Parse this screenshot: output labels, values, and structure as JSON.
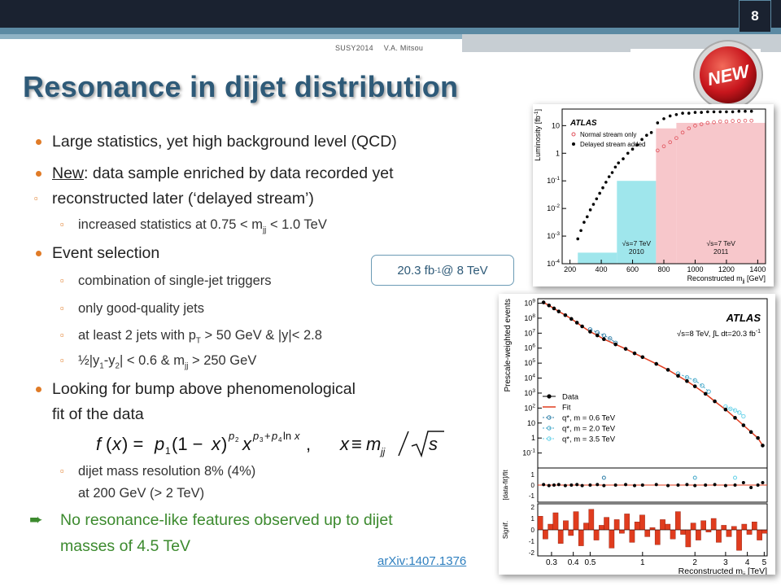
{
  "header": {
    "page_number": "8",
    "conference": "SUSY2014",
    "author": "V.A. Mitsou",
    "badge": "NEW"
  },
  "title": "Resonance in dijet distribution",
  "bullets": {
    "b1": "Large statistics, yet high background level (QCD)",
    "b2_new": "New",
    "b2_rest": ": data sample enriched by data recorded yet",
    "b2_line2": "reconstructed later (‘delayed stream’)",
    "sub1_pre": "increased statistics at 0.75 < m",
    "sub1_sub": "jj",
    "sub1_post": " < 1.0 TeV",
    "b3": "Event selection",
    "sub2": "combination of single-jet triggers",
    "sub3": "only good-quality jets",
    "sub4_pre": "at least 2 jets with p",
    "sub4_sub": "T",
    "sub4_post": " > 50 GeV & |y|< 2.8",
    "sub5_a": "½|y",
    "sub5_s1": "1",
    "sub5_b": "-y",
    "sub5_s2": "2",
    "sub5_c": "| < 0.6  &  m",
    "sub5_s3": "jj",
    "sub5_d": " > 250 GeV",
    "b4_line1": "Looking for bump above phenomenological",
    "b4_line2": "fit of the data",
    "sub6_line1": "dijet mass resolution 8% (4%)",
    "sub6_line2": "at 200 GeV (> 2 TeV)",
    "conclusion_line1": "No resonance-like features observed up to dijet",
    "conclusion_line2": "masses of 4.5 TeV",
    "arrow_icon": "right-arrow-icon"
  },
  "callout": {
    "pre": "20.3 fb",
    "sup": "-1",
    "post": " @ 8 TeV"
  },
  "reference_link": "arXiv:1407.1376",
  "colors": {
    "title": "#2e5a78",
    "bullet": "#e07b27",
    "conclusion": "#3c8a2e",
    "header_dark": "#1a2230",
    "header_accent": "#5c8aa3"
  },
  "chart_data": [
    {
      "type": "scatter",
      "title": "",
      "label": "ATLAS",
      "xlabel": "Reconstructed m",
      "xlabel_sub": "jj",
      "xlabel_unit": " [GeV]",
      "ylabel": "Luminosity [fb",
      "ylabel_sup": "-1",
      "ylabel_end": "]",
      "xlim": [
        150,
        1450
      ],
      "ylim_log10": [
        -4,
        1.6
      ],
      "x_ticks": [
        200,
        400,
        600,
        800,
        1000,
        1200,
        1400
      ],
      "y_ticks": [
        {
          "base": "10",
          "exp": "-4",
          "v": -4
        },
        {
          "base": "10",
          "exp": "-3",
          "v": -3
        },
        {
          "base": "10",
          "exp": "-2",
          "v": -2
        },
        {
          "base": "10",
          "exp": "-1",
          "v": -1
        },
        {
          "base": "1",
          "exp": "",
          "v": 0
        },
        {
          "base": "10",
          "exp": "",
          "v": 1
        }
      ],
      "y_scale": "log",
      "legend": [
        "Normal stream only",
        "Delayed stream added"
      ],
      "regions": [
        {
          "x0": 250,
          "x1": 500,
          "y_log10": -3.6,
          "color": "#9fe6ec",
          "label": ""
        },
        {
          "x0": 500,
          "x1": 750,
          "y_log10": -1.0,
          "color": "#9fe6ec",
          "label_line1": "√s=7 TeV",
          "label_line2": "2010"
        },
        {
          "x0": 750,
          "x1": 880,
          "y_log10": 0.9,
          "color": "#f7c7cb",
          "label": ""
        },
        {
          "x0": 880,
          "x1": 1450,
          "y_log10": 1.1,
          "color": "#f7c7cb",
          "label_line1": "√s=7 TeV",
          "label_line2": "2011"
        }
      ],
      "series": [
        {
          "name": "Delayed stream added",
          "marker": "filled",
          "points": [
            [
              250,
              -3.1
            ],
            [
              270,
              -2.8
            ],
            [
              290,
              -2.5
            ],
            [
              310,
              -2.3
            ],
            [
              330,
              -2.05
            ],
            [
              350,
              -1.85
            ],
            [
              370,
              -1.65
            ],
            [
              390,
              -1.45
            ],
            [
              410,
              -1.25
            ],
            [
              430,
              -1.05
            ],
            [
              450,
              -0.85
            ],
            [
              470,
              -0.7
            ],
            [
              490,
              -0.5
            ],
            [
              510,
              -0.35
            ],
            [
              540,
              -0.2
            ],
            [
              570,
              0.0
            ],
            [
              600,
              0.15
            ],
            [
              630,
              0.3
            ],
            [
              660,
              0.5
            ],
            [
              690,
              0.65
            ],
            [
              720,
              0.75
            ],
            [
              760,
              1.1
            ],
            [
              800,
              1.25
            ],
            [
              840,
              1.35
            ],
            [
              880,
              1.4
            ],
            [
              920,
              1.45
            ],
            [
              960,
              1.45
            ],
            [
              1000,
              1.48
            ],
            [
              1040,
              1.48
            ],
            [
              1080,
              1.5
            ],
            [
              1120,
              1.5
            ],
            [
              1160,
              1.5
            ],
            [
              1200,
              1.5
            ],
            [
              1240,
              1.5
            ],
            [
              1280,
              1.52
            ],
            [
              1320,
              1.52
            ],
            [
              1360,
              1.52
            ]
          ]
        },
        {
          "name": "Normal stream only",
          "marker": "open",
          "points": [
            [
              760,
              0.1
            ],
            [
              800,
              0.25
            ],
            [
              840,
              0.4
            ],
            [
              880,
              0.55
            ],
            [
              920,
              0.75
            ],
            [
              960,
              0.9
            ],
            [
              1000,
              1.0
            ],
            [
              1040,
              1.05
            ],
            [
              1080,
              1.1
            ],
            [
              1120,
              1.12
            ],
            [
              1160,
              1.15
            ],
            [
              1200,
              1.15
            ],
            [
              1240,
              1.17
            ],
            [
              1280,
              1.17
            ],
            [
              1320,
              1.18
            ],
            [
              1360,
              1.18
            ]
          ]
        }
      ]
    },
    {
      "type": "line",
      "title": "",
      "label": "ATLAS",
      "annotation": "√s=8 TeV, ∫L dt=20.3 fb",
      "annotation_sup": "-1",
      "xlabel": "Reconstructed m",
      "xlabel_sub": "jj",
      "xlabel_unit": " [TeV]",
      "ylabel_main": "Prescale-weighted events",
      "ylabel_ratio": "[data-fit]/fit",
      "ylabel_signif": "Signif.",
      "x_scale": "log",
      "xlim": [
        0.25,
        5.2
      ],
      "x_ticks": [
        {
          "v": 0.3,
          "label": "0.3"
        },
        {
          "v": 0.4,
          "label": "0.4"
        },
        {
          "v": 0.5,
          "label": "0.5"
        },
        {
          "v": 1,
          "label": "1"
        },
        {
          "v": 2,
          "label": "2"
        },
        {
          "v": 3,
          "label": "3"
        },
        {
          "v": 4,
          "label": "4"
        },
        {
          "v": 5,
          "label": "5"
        }
      ],
      "y_scale": "log",
      "ylim_log10": [
        -2,
        9.3
      ],
      "y_ticks": [
        {
          "base": "10",
          "exp": "9",
          "v": 9
        },
        {
          "base": "10",
          "exp": "8",
          "v": 8
        },
        {
          "base": "10",
          "exp": "7",
          "v": 7
        },
        {
          "base": "10",
          "exp": "6",
          "v": 6
        },
        {
          "base": "10",
          "exp": "5",
          "v": 5
        },
        {
          "base": "10",
          "exp": "4",
          "v": 4
        },
        {
          "base": "10",
          "exp": "3",
          "v": 3
        },
        {
          "base": "10",
          "exp": "2",
          "v": 2
        },
        {
          "base": "10",
          "exp": "",
          "v": 1
        },
        {
          "base": "1",
          "exp": "",
          "v": 0
        },
        {
          "base": "10",
          "exp": "-1",
          "v": -1
        }
      ],
      "ratio_ticks": [
        "1",
        "0",
        "-1"
      ],
      "signif_ticks": [
        "2",
        "1",
        "0",
        "-1",
        "-2"
      ],
      "legend": [
        {
          "name": "Data",
          "style": "marker",
          "color": "#000000"
        },
        {
          "name": "Fit",
          "style": "line",
          "color": "#e03c1e"
        },
        {
          "name": "q*, m = 0.6 TeV",
          "style": "dashed-open",
          "color": "#2f7fa8"
        },
        {
          "name": "q*, m = 2.0 TeV",
          "style": "dashed-open",
          "color": "#40a6c8"
        },
        {
          "name": "q*, m = 3.5 TeV",
          "style": "dashed-open",
          "color": "#60d0e8"
        }
      ],
      "series": [
        {
          "name": "Data",
          "points": [
            [
              0.27,
              9.05
            ],
            [
              0.29,
              8.85
            ],
            [
              0.31,
              8.65
            ],
            [
              0.33,
              8.45
            ],
            [
              0.36,
              8.2
            ],
            [
              0.39,
              7.95
            ],
            [
              0.42,
              7.7
            ],
            [
              0.45,
              7.45
            ],
            [
              0.5,
              7.1
            ],
            [
              0.55,
              6.85
            ],
            [
              0.6,
              6.6
            ],
            [
              0.7,
              6.25
            ],
            [
              0.8,
              5.95
            ],
            [
              0.9,
              5.65
            ],
            [
              1.0,
              5.4
            ],
            [
              1.2,
              4.95
            ],
            [
              1.4,
              4.55
            ],
            [
              1.6,
              4.15
            ],
            [
              1.8,
              3.8
            ],
            [
              2.0,
              3.45
            ],
            [
              2.3,
              2.95
            ],
            [
              2.6,
              2.45
            ],
            [
              3.0,
              1.9
            ],
            [
              3.4,
              1.35
            ],
            [
              3.8,
              0.85
            ],
            [
              4.2,
              0.4
            ],
            [
              4.6,
              0.0
            ],
            [
              4.9,
              -0.5
            ]
          ]
        },
        {
          "name": "q*, m = 0.6 TeV",
          "points": [
            [
              0.5,
              7.25
            ],
            [
              0.55,
              7.05
            ],
            [
              0.6,
              6.85
            ],
            [
              0.65,
              6.65
            ],
            [
              0.7,
              6.35
            ]
          ]
        },
        {
          "name": "q*, m = 2.0 TeV",
          "points": [
            [
              1.6,
              4.3
            ],
            [
              1.8,
              4.05
            ],
            [
              2.0,
              3.85
            ],
            [
              2.2,
              3.5
            ],
            [
              2.4,
              3.1
            ]
          ]
        },
        {
          "name": "q*, m = 3.5 TeV",
          "points": [
            [
              3.0,
              2.1
            ],
            [
              3.2,
              1.95
            ],
            [
              3.4,
              1.85
            ],
            [
              3.6,
              1.7
            ],
            [
              3.8,
              1.45
            ]
          ]
        }
      ],
      "signif_values": [
        1.2,
        -0.8,
        0.5,
        1.5,
        -1.2,
        0.8,
        -0.5,
        1.6,
        -1.4,
        0.6,
        1.8,
        -0.9,
        0.4,
        1.1,
        -1.6,
        0.9,
        -0.3,
        1.4,
        -1.1,
        0.7,
        1.3,
        -0.6,
        0.2,
        -1.3,
        0.9,
        0.5,
        -0.8,
        1.6,
        -0.4,
        -1.5,
        0.6,
        -0.9,
        0.8,
        -0.2,
        1.0,
        -1.1,
        0.4,
        -0.6,
        0.3,
        -1.8,
        0.5,
        -0.4,
        0.7,
        -0.9,
        -0.3
      ]
    }
  ]
}
